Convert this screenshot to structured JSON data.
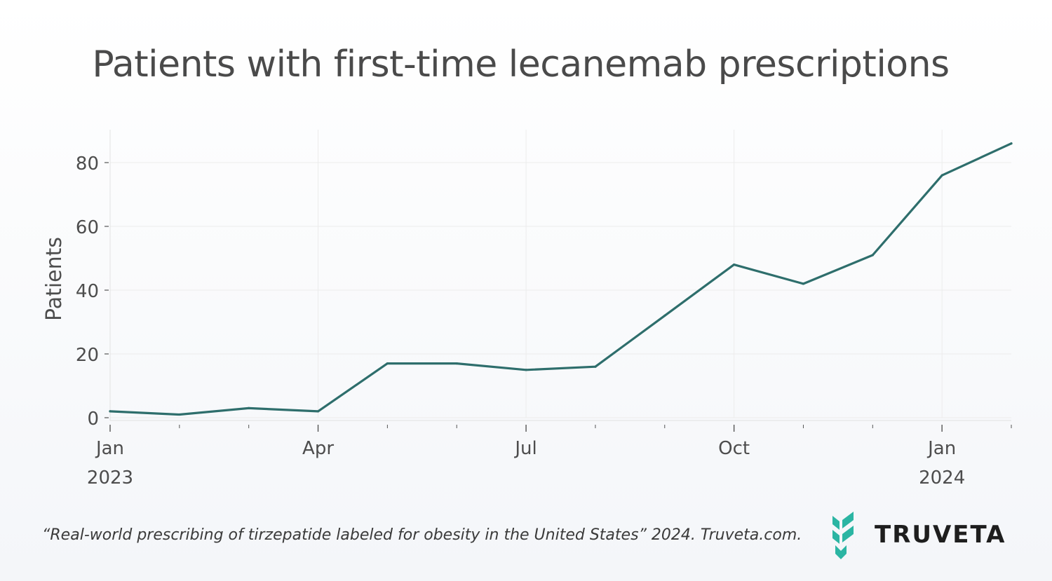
{
  "title": "Patients with first-time lecanemab prescriptions",
  "caption": "“Real-world prescribing of tirzepatide labeled for obesity in the United States” 2024. Truveta.com.",
  "logo": {
    "wordmark": "TRUVETA",
    "color": "#2bb5a3"
  },
  "chart_data": {
    "type": "line",
    "title": "Patients with first-time lecanemab prescriptions",
    "xlabel": "",
    "ylabel": "Patients",
    "x": [
      "2023-01",
      "2023-02",
      "2023-03",
      "2023-04",
      "2023-05",
      "2023-06",
      "2023-07",
      "2023-08",
      "2023-09",
      "2023-10",
      "2023-11",
      "2023-12",
      "2024-01",
      "2024-02"
    ],
    "series": [
      {
        "values": [
          2,
          1,
          3,
          2,
          17,
          17,
          15,
          16,
          32,
          48,
          42,
          51,
          76,
          86
        ],
        "color": "#2e6e6c"
      }
    ],
    "ylim": [
      0,
      90
    ],
    "yticks": [
      0,
      20,
      40,
      60,
      80
    ],
    "xtick_labels": [
      {
        "at": "2023-01",
        "line1": "Jan",
        "line2": "2023"
      },
      {
        "at": "2023-04",
        "line1": "Apr",
        "line2": ""
      },
      {
        "at": "2023-07",
        "line1": "Jul",
        "line2": ""
      },
      {
        "at": "2023-10",
        "line1": "Oct",
        "line2": ""
      },
      {
        "at": "2024-01",
        "line1": "Jan",
        "line2": "2024"
      }
    ],
    "grid": true,
    "legend": "none"
  }
}
